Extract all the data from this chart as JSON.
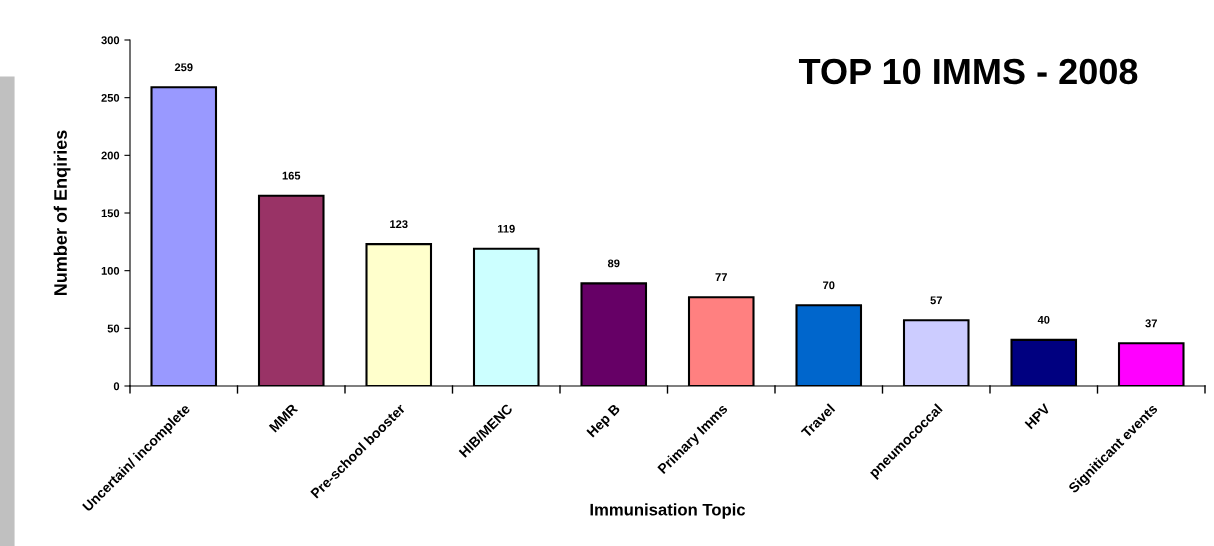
{
  "chart_data": {
    "type": "bar",
    "title": "TOP 10 IMMS - 2008",
    "xlabel": "Immunisation Topic",
    "ylabel": "Number of Enqiries",
    "categories": [
      "Uncertain/ incomplete",
      "MMR",
      "Pre-school booster",
      "HIB/MENC",
      "Hep B",
      "Primary Imms",
      "Travel",
      "pneumococcal",
      "HPV",
      "Signiticant events"
    ],
    "values": [
      259,
      165,
      123,
      119,
      89,
      77,
      70,
      57,
      40,
      37
    ],
    "colors": [
      "#9999ff",
      "#993366",
      "#ffffcc",
      "#ccffff",
      "#660066",
      "#ff8080",
      "#0066cc",
      "#ccccff",
      "#000080",
      "#ff00ff"
    ],
    "ylim": [
      0,
      300
    ],
    "yticks": [
      0,
      50,
      100,
      150,
      200,
      250,
      300
    ],
    "grid": false,
    "legend": false,
    "data_labels": true
  }
}
